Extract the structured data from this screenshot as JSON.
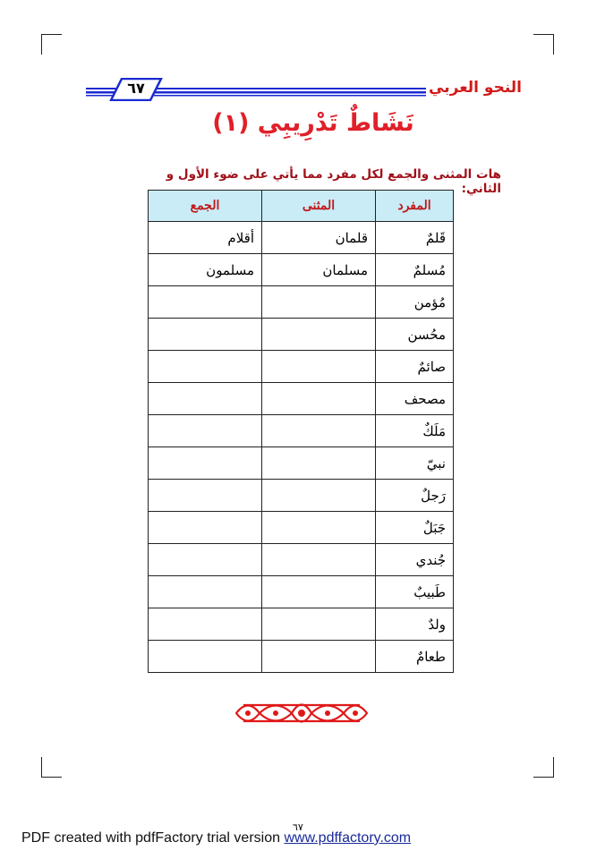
{
  "header": {
    "book_title": "النحو العربي",
    "page_number": "٦٧",
    "accent": "#1a2ad0"
  },
  "activity": {
    "title": "نَشَاطٌ تَدْرِيبِي (١)",
    "instruction": "هات المثنى والجمع لكل مفرد مما يأتي على ضوء الأول و الثاني:"
  },
  "table": {
    "headers": [
      "المفرد",
      "المثنى",
      "الجمع"
    ],
    "rows": [
      [
        "قَلمٌ",
        "قلمان",
        "أقلام"
      ],
      [
        "مُسلمٌ",
        "مسلمان",
        "مسلمون"
      ],
      [
        "مُؤمن",
        "",
        ""
      ],
      [
        "محُسن",
        "",
        ""
      ],
      [
        "صائمٌ",
        "",
        ""
      ],
      [
        "مصحف",
        "",
        ""
      ],
      [
        "مَلَكٌ",
        "",
        ""
      ],
      [
        "نبيّ",
        "",
        ""
      ],
      [
        "رَجلٌ",
        "",
        ""
      ],
      [
        "جَبَلٌ",
        "",
        ""
      ],
      [
        "جُندي",
        "",
        ""
      ],
      [
        "طَبيبٌ",
        "",
        ""
      ],
      [
        "ولدٌ",
        "",
        ""
      ],
      [
        "طعامٌ",
        "",
        ""
      ]
    ]
  },
  "footer": {
    "text": "PDF created with pdfFactory trial version",
    "link": "www.pdffactory.com",
    "page_mark": "٦٧"
  }
}
